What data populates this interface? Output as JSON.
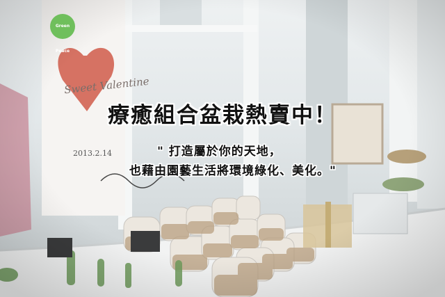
{
  "headline": "療癒組合盆栽熱賣中！",
  "subline_1": "\" 打造屬於你的天地，",
  "subline_2": "也藉由園藝生活將環境綠化、美化。\"",
  "card": {
    "badge": "Green Peace",
    "title": "Sweet Valentine",
    "date": "2013.2.14"
  }
}
